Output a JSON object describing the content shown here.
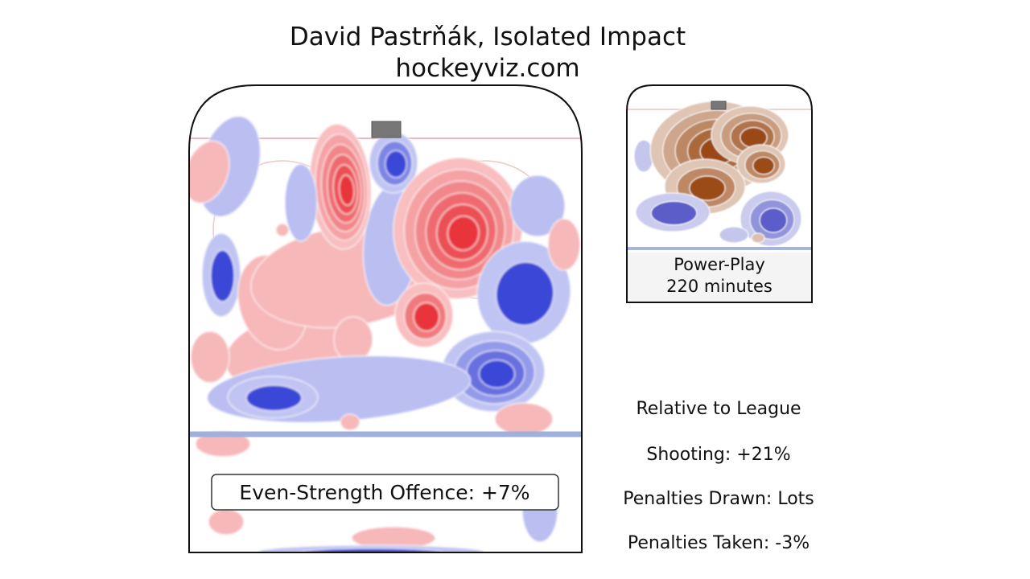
{
  "title": "David Pastrňák, Isolated Impact",
  "subtitle": "hockeyviz.com",
  "main_panel": {
    "label": "Even-Strength Offence: +7%",
    "colors": {
      "above": "#e8343a",
      "below": "#3a46d6"
    }
  },
  "pp_panel": {
    "label_line1": "Power-Play",
    "label_line2": "220 minutes",
    "colors": {
      "above": "#9a4a12",
      "below": "#5a5cc8"
    }
  },
  "stats": {
    "header": "Relative to League",
    "shooting": "Shooting: +21%",
    "penalties_drawn": "Penalties Drawn: Lots",
    "penalties_taken": "Penalties Taken: -3%"
  },
  "chart_data": {
    "type": "heatmap",
    "title": "David Pastrňák, Isolated Impact",
    "subtitle": "hockeyviz.com",
    "panels": [
      {
        "name": "Even-Strength Offence: +7%",
        "scale": "diverging red (above league) / blue (below league)"
      },
      {
        "name": "Power-Play 220 minutes",
        "scale": "diverging orange-brown (above) / blue (below)"
      }
    ],
    "annotations": [
      "Relative to League",
      "Shooting: +21%",
      "Penalties Drawn: Lots",
      "Penalties Taken: -3%"
    ]
  }
}
